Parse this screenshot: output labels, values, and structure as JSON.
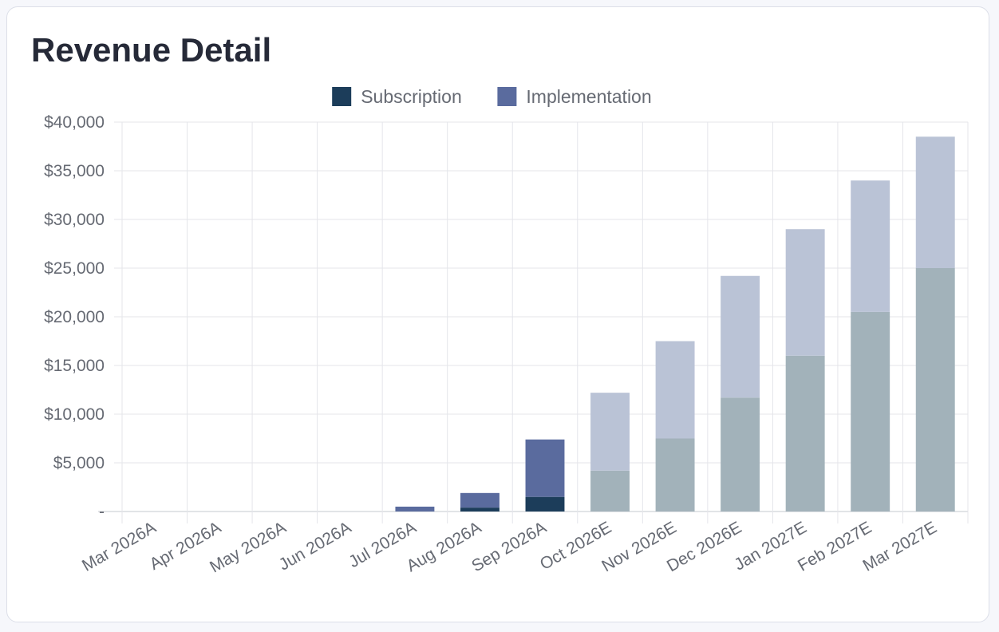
{
  "card": {
    "title": "Revenue Detail"
  },
  "chart_data": {
    "type": "bar",
    "stacked": true,
    "title": "",
    "xlabel": "",
    "ylabel": "",
    "ylim": [
      0,
      40000
    ],
    "yticks": [
      0,
      5000,
      10000,
      15000,
      20000,
      25000,
      30000,
      35000,
      40000
    ],
    "ytick_labels": [
      "-",
      "$5,000",
      "$10,000",
      "$15,000",
      "$20,000",
      "$25,000",
      "$30,000",
      "$35,000",
      "$40,000"
    ],
    "grid": true,
    "legend_position": "top-center",
    "categories": [
      "Mar 2026A",
      "Apr 2026A",
      "May 2026A",
      "Jun 2026A",
      "Jul 2026A",
      "Aug 2026A",
      "Sep 2026A",
      "Oct 2026E",
      "Nov 2026E",
      "Dec 2026E",
      "Jan 2027E",
      "Feb 2027E",
      "Mar 2027E"
    ],
    "estimate": [
      false,
      false,
      false,
      false,
      false,
      false,
      false,
      true,
      true,
      true,
      true,
      true,
      true
    ],
    "series": [
      {
        "name": "Subscription",
        "color": "#1c3d5a",
        "estimate_color": "#a2b2ba",
        "values": [
          0,
          0,
          0,
          0,
          0,
          400,
          1500,
          4200,
          7500,
          11700,
          16000,
          20500,
          25000
        ]
      },
      {
        "name": "Implementation",
        "color": "#5a6b9e",
        "estimate_color": "#bac3d6",
        "values": [
          0,
          0,
          0,
          0,
          500,
          1500,
          5900,
          8000,
          10000,
          12500,
          13000,
          13500,
          13500
        ]
      }
    ]
  }
}
